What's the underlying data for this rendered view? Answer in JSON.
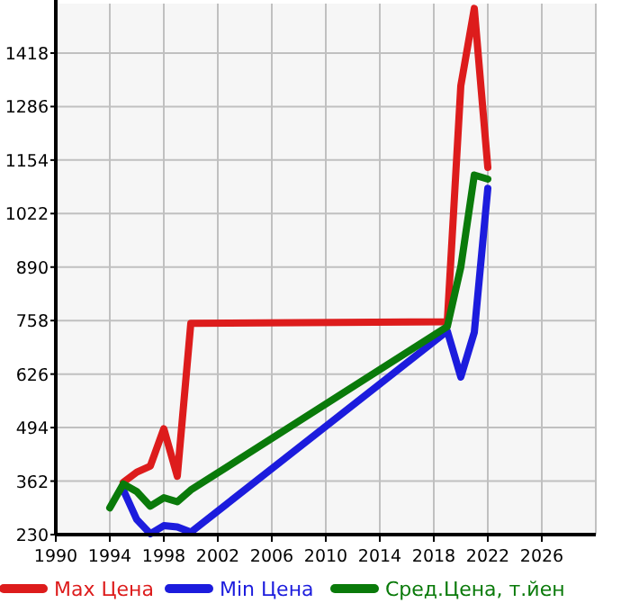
{
  "chart_data": {
    "type": "line",
    "xlim": [
      1990,
      2030
    ],
    "xticks": [
      1990,
      1994,
      1998,
      2002,
      2006,
      2010,
      2014,
      2018,
      2022,
      2026
    ],
    "ylim": [
      230,
      1540
    ],
    "yticks": [
      230,
      362,
      494,
      626,
      758,
      890,
      1022,
      1154,
      1286,
      1418
    ],
    "grid": true,
    "legend": "bottom",
    "marker": "none",
    "line_style": "solid",
    "series": [
      {
        "name": "Max Цена",
        "color": "#dd1c1c",
        "x": [
          1995,
          1996,
          1997,
          1998,
          1999,
          2000,
          2019,
          2020,
          2021,
          2022
        ],
        "values": [
          359,
          384,
          399,
          491,
          374,
          751,
          755,
          1337,
          1528,
          1136
        ]
      },
      {
        "name": "Min Цена",
        "color": "#1c1cdd",
        "x": [
          1995,
          1996,
          1997,
          1998,
          1999,
          2000,
          2019,
          2020,
          2021,
          2022
        ],
        "values": [
          340,
          267,
          232,
          252,
          249,
          236,
          732,
          619,
          729,
          1084
        ]
      },
      {
        "name": "Сред.Цена, т.йен",
        "color": "#0a7a0a",
        "x": [
          1994,
          1995,
          1996,
          1997,
          1998,
          1999,
          2000,
          2019,
          2020,
          2021,
          2022
        ],
        "values": [
          296,
          355,
          336,
          300,
          321,
          311,
          340,
          743,
          890,
          1117,
          1107
        ]
      }
    ]
  }
}
